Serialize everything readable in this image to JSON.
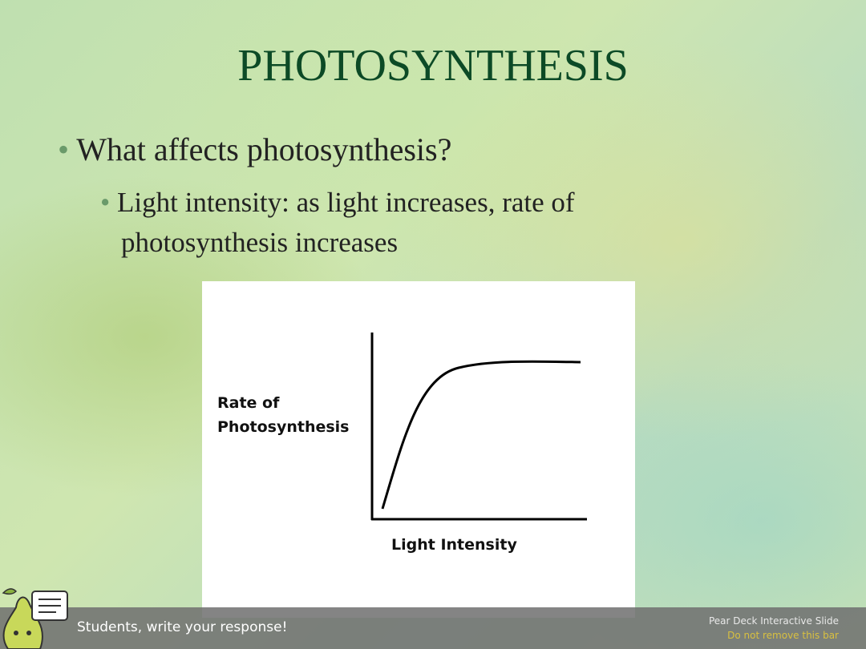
{
  "slide": {
    "title": "PHOTOSYNTHESIS",
    "bullet": "What affects photosynthesis?",
    "sub_bullet_lines": [
      "Light intensity:  as light increases, rate of",
      "photosynthesis increases"
    ],
    "graph": {
      "y_label_lines": [
        "Rate of",
        "Photosynthesis"
      ],
      "x_label": "Light Intensity"
    }
  },
  "bottom_bar": {
    "prompt": "Students, write your response!",
    "brand": "Pear Deck Interactive Slide",
    "notice": "Do not remove this bar"
  }
}
